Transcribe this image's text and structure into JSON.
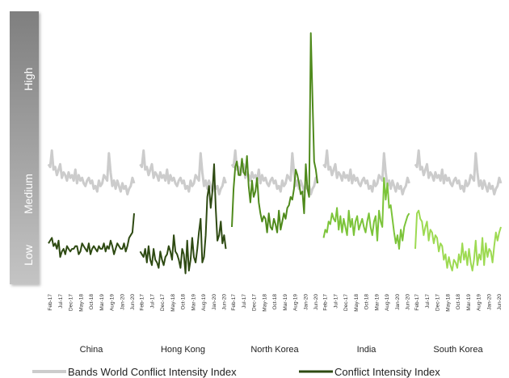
{
  "chart_data": {
    "type": "line",
    "ylabel_bands": [
      "High",
      "Medium",
      "Low"
    ],
    "x_ticks": [
      "Feb-17",
      "Jul-17",
      "Dec-17",
      "May-18",
      "Oct-18",
      "Mar-19",
      "Aug-19",
      "Jan-20",
      "Jun-20"
    ],
    "ylim": [
      0,
      10
    ],
    "legend_position": "bottom",
    "colors": {
      "world": "#cccccc",
      "band_top": "#7f7f7f",
      "band_bottom": "#c4c4c4",
      "China": "#2e4a12",
      "Hong Kong": "#2e4a12",
      "North Korea": "#4f8a1c",
      "India": "#7cc43a",
      "South Korea": "#9dda52"
    },
    "series": [
      {
        "name": "Bands World Conflict Intensity Index"
      },
      {
        "name": "Conflict Intensity Index"
      }
    ],
    "world_index": [
      4.4,
      4.3,
      4.9,
      4.2,
      4.3,
      4.0,
      4.2,
      4.4,
      3.9,
      4.1,
      4.0,
      3.8,
      4.1,
      3.9,
      4.0,
      3.8,
      4.2,
      3.7,
      4.0,
      3.8,
      3.9,
      3.7,
      3.6,
      3.8,
      3.9,
      3.7,
      3.8,
      3.5,
      3.6,
      3.4,
      3.8,
      3.6,
      3.7,
      4.0,
      3.9,
      3.8,
      4.8,
      4.1,
      3.6,
      3.8,
      3.5,
      3.8,
      3.6,
      3.4,
      3.7,
      3.5,
      3.6,
      3.3,
      3.5,
      3.6,
      3.9,
      3.7
    ],
    "groups": [
      {
        "name": "China",
        "color_key": "China",
        "values": [
          1.5,
          1.6,
          1.7,
          1.4,
          1.5,
          1.3,
          1.6,
          1.0,
          1.2,
          1.3,
          1.1,
          1.4,
          1.3,
          1.2,
          1.3,
          1.3,
          1.4,
          1.4,
          1.1,
          1.2,
          1.5,
          1.4,
          1.3,
          1.2,
          1.5,
          1.1,
          1.3,
          1.4,
          1.3,
          1.2,
          1.4,
          1.3,
          1.3,
          1.5,
          1.2,
          1.4,
          1.3,
          1.6,
          1.4,
          1.1,
          1.3,
          1.5,
          1.4,
          1.3,
          1.3,
          1.5,
          1.2,
          1.4,
          1.7,
          1.8,
          1.9,
          2.6
        ]
      },
      {
        "name": "Hong Kong",
        "color_key": "Hong Kong",
        "values": [
          1.2,
          1.1,
          1.0,
          1.3,
          0.8,
          1.4,
          0.9,
          0.7,
          1.3,
          0.9,
          0.8,
          0.6,
          1.2,
          0.9,
          0.7,
          1.0,
          1.1,
          1.4,
          1.2,
          0.9,
          1.8,
          1.2,
          1.1,
          0.9,
          0.6,
          1.3,
          1.1,
          0.4,
          1.6,
          0.5,
          0.9,
          1.7,
          1.0,
          0.8,
          1.3,
          1.9,
          2.4,
          0.8,
          1.0,
          1.8,
          3.2,
          3.6,
          2.8,
          3.4,
          4.4,
          2.8,
          1.6,
          1.8,
          2.3,
          1.5,
          1.8,
          1.3
        ]
      },
      {
        "name": "North Korea",
        "color_key": "North Korea",
        "values": [
          2.1,
          3.5,
          4.3,
          4.5,
          4.0,
          4.0,
          4.6,
          4.1,
          4.0,
          4.7,
          3.6,
          3.0,
          3.8,
          3.2,
          3.4,
          3.9,
          3.0,
          2.6,
          2.3,
          2.5,
          2.4,
          1.9,
          2.6,
          2.1,
          2.0,
          2.4,
          2.2,
          1.9,
          2.7,
          2.0,
          2.3,
          2.6,
          2.4,
          2.8,
          2.9,
          3.2,
          3.1,
          3.5,
          4.2,
          4.0,
          3.7,
          3.3,
          3.4,
          2.6,
          4.4,
          3.5,
          3.2,
          9.2,
          6.8,
          4.5,
          4.2,
          3.7
        ]
      },
      {
        "name": "India",
        "color_key": "India",
        "values": [
          1.7,
          2.0,
          1.9,
          2.3,
          2.2,
          2.6,
          2.4,
          2.3,
          2.8,
          2.0,
          2.5,
          1.9,
          2.4,
          2.1,
          1.8,
          2.7,
          2.1,
          2.4,
          1.8,
          2.3,
          2.5,
          2.0,
          2.2,
          2.4,
          2.1,
          1.9,
          2.3,
          2.6,
          2.1,
          1.8,
          2.3,
          2.5,
          1.6,
          2.7,
          2.3,
          2.1,
          3.9,
          3.1,
          3.7,
          2.8,
          2.9,
          2.4,
          1.9,
          1.5,
          1.8,
          1.3,
          2.0,
          1.6,
          2.1,
          2.3,
          2.5,
          2.6
        ]
      },
      {
        "name": "South Korea",
        "color_key": "South Korea",
        "values": [
          1.3,
          2.6,
          2.7,
          2.4,
          2.3,
          1.8,
          2.1,
          2.3,
          1.6,
          2.0,
          1.9,
          1.5,
          1.8,
          1.7,
          1.2,
          1.5,
          1.4,
          0.9,
          1.1,
          0.6,
          1.0,
          0.7,
          0.5,
          0.9,
          0.8,
          0.6,
          1.1,
          0.8,
          1.5,
          0.9,
          1.2,
          0.7,
          1.3,
          0.8,
          0.5,
          0.9,
          1.6,
          0.7,
          1.1,
          0.9,
          1.7,
          0.7,
          1.5,
          1.0,
          1.3,
          1.2,
          0.8,
          1.4,
          1.9,
          1.6,
          1.9,
          2.1
        ]
      }
    ],
    "legend": [
      {
        "label": "Bands World Conflict Intensity Index",
        "color_key": "world"
      },
      {
        "label": "Conflict Intensity Index",
        "color_key": "China"
      }
    ]
  }
}
